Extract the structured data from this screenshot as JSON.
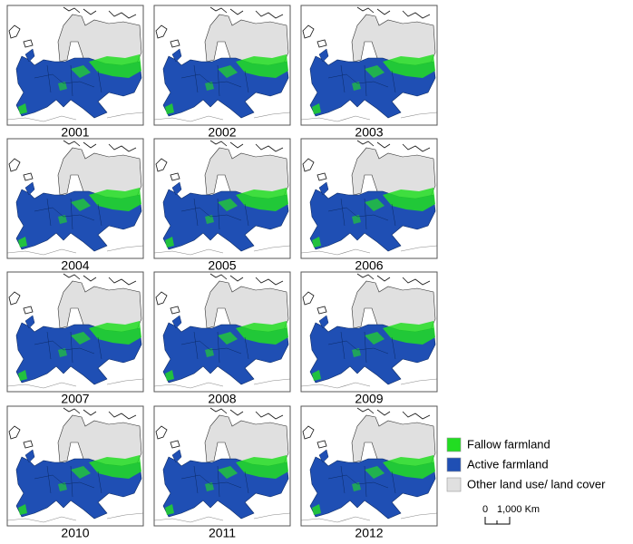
{
  "panels": [
    {
      "label": "2001"
    },
    {
      "label": "2002"
    },
    {
      "label": "2003"
    },
    {
      "label": "2004"
    },
    {
      "label": "2005"
    },
    {
      "label": "2006"
    },
    {
      "label": "2007"
    },
    {
      "label": "2008"
    },
    {
      "label": "2009"
    },
    {
      "label": "2010"
    },
    {
      "label": "2011"
    },
    {
      "label": "2012"
    }
  ],
  "legend": {
    "items": [
      {
        "label": "Fallow farmland",
        "color": "#22dd22"
      },
      {
        "label": "Active farmland",
        "color": "#1f4fb4"
      },
      {
        "label": "Other land use/ land cover",
        "color": "#e0e0e0"
      }
    ]
  },
  "scale_bar": {
    "start": "0",
    "end": "1,000 Km"
  }
}
